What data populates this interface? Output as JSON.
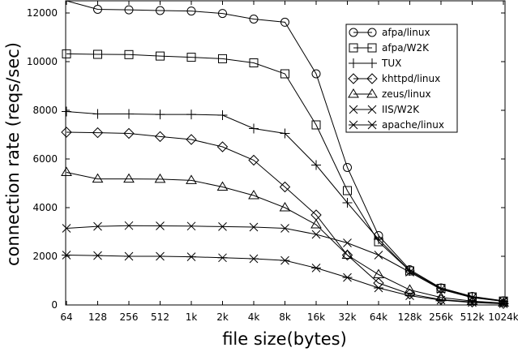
{
  "chart_data": {
    "type": "line",
    "title": "",
    "xlabel": "file size(bytes)",
    "ylabel": "connection rate (reqs/sec)",
    "categories": [
      "64",
      "128",
      "256",
      "512",
      "1k",
      "2k",
      "4k",
      "8k",
      "16k",
      "32k",
      "64k",
      "128k",
      "256k",
      "512k",
      "1024k"
    ],
    "ylim": [
      0,
      12500
    ],
    "yticks": [
      0,
      2000,
      4000,
      6000,
      8000,
      10000,
      12000
    ],
    "grid": false,
    "legend_position": "top-right",
    "series": [
      {
        "name": "afpa/linux",
        "marker": "circle",
        "values": [
          12500,
          12150,
          12130,
          12100,
          12080,
          11980,
          11750,
          11620,
          9500,
          5650,
          2850,
          1450,
          700,
          350,
          170
        ]
      },
      {
        "name": "afpa/W2K",
        "marker": "square",
        "values": [
          10320,
          10300,
          10290,
          10230,
          10180,
          10120,
          9950,
          9500,
          7400,
          4700,
          2600,
          1400,
          680,
          330,
          160
        ]
      },
      {
        "name": "TUX",
        "marker": "plus",
        "values": [
          7950,
          7850,
          7850,
          7830,
          7830,
          7800,
          7250,
          7050,
          5750,
          4200,
          2700,
          1400,
          670,
          320,
          150
        ]
      },
      {
        "name": "khttpd/linux",
        "marker": "diamond",
        "values": [
          7100,
          7080,
          7050,
          6920,
          6800,
          6500,
          5950,
          4850,
          3700,
          2050,
          900,
          450,
          220,
          120,
          60
        ]
      },
      {
        "name": "zeus/linux",
        "marker": "triangle",
        "values": [
          5450,
          5180,
          5180,
          5170,
          5120,
          4850,
          4500,
          4000,
          3300,
          2050,
          1250,
          620,
          310,
          160,
          80
        ]
      },
      {
        "name": "IIS/W2K",
        "marker": "x",
        "values": [
          3150,
          3230,
          3260,
          3250,
          3240,
          3220,
          3200,
          3150,
          2900,
          2550,
          2050,
          1350,
          640,
          300,
          150
        ]
      },
      {
        "name": "apache/linux",
        "marker": "asterisk",
        "values": [
          2050,
          2030,
          2000,
          2000,
          1980,
          1940,
          1900,
          1830,
          1520,
          1130,
          700,
          380,
          200,
          100,
          50
        ]
      }
    ]
  }
}
